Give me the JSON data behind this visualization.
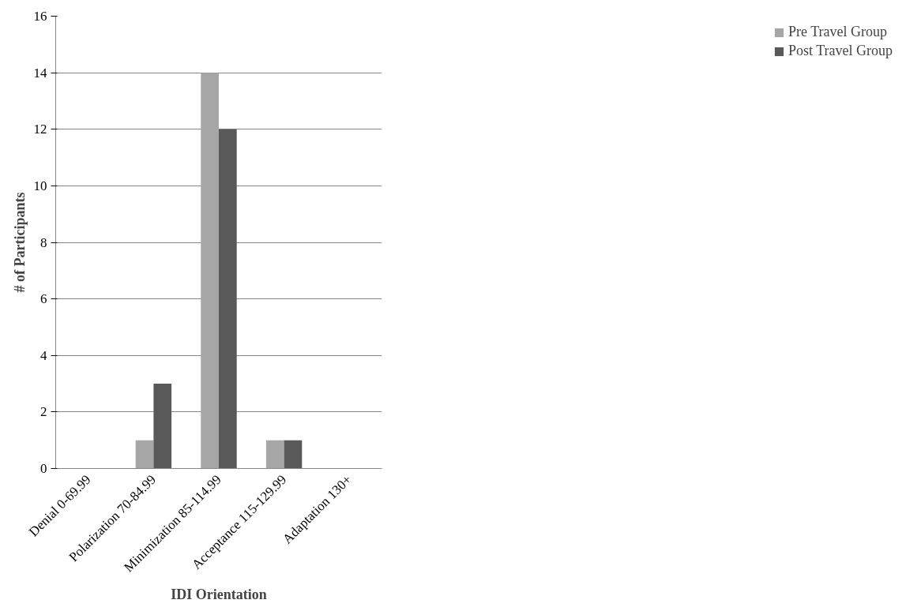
{
  "chart_data": {
    "type": "bar",
    "xlabel": "IDI Orientation",
    "ylabel": "# of Participants",
    "categories": [
      "Denial 0-69.99",
      "Polarization 70-84.99",
      "Minimization 85-114.99",
      "Acceptance 115-129.99",
      "Adaptation 130+"
    ],
    "series": [
      {
        "name": "Pre Travel Group",
        "color": "#a6a6a6",
        "values": [
          0,
          1,
          14,
          1,
          0
        ]
      },
      {
        "name": "Post Travel Group",
        "color": "#595959",
        "values": [
          0,
          3,
          12,
          1,
          0
        ]
      }
    ],
    "ylim": [
      0,
      16
    ],
    "yticks": [
      0,
      2,
      4,
      6,
      8,
      10,
      12,
      14,
      16
    ],
    "grid": "y",
    "legend": "right"
  }
}
